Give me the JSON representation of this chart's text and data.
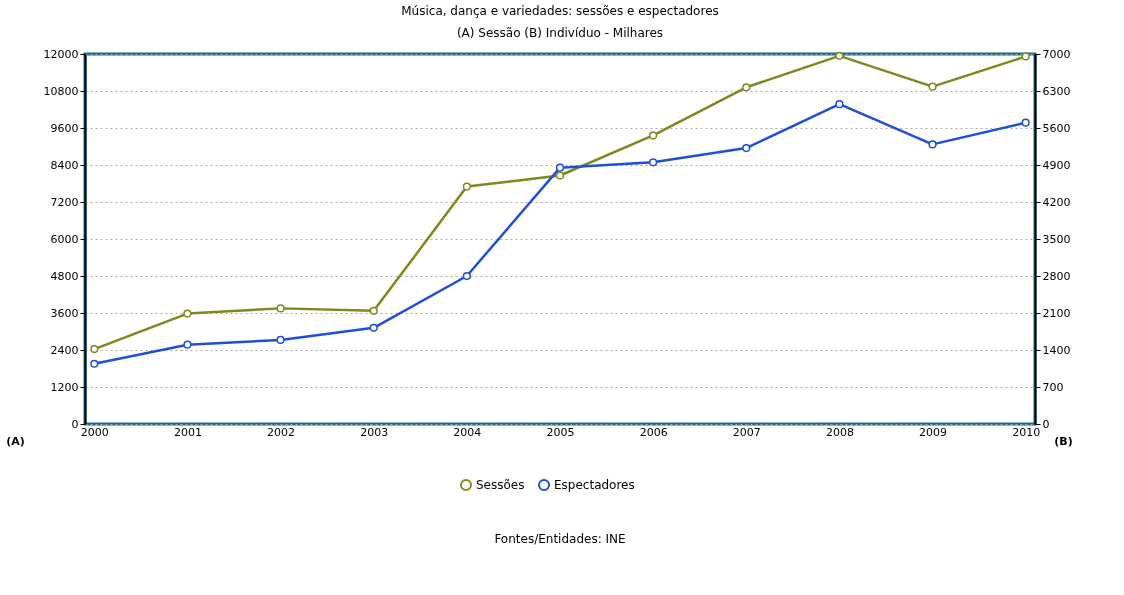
{
  "chart_data": {
    "type": "line",
    "title": "Música, dança e variedades: sessões e espectadores",
    "subtitle": "(A) Sessão      (B) Indivíduo - Milhares",
    "ylabel": "(A)",
    "y2label": "(B)",
    "categories": [
      "2000",
      "2001",
      "2002",
      "2003",
      "2004",
      "2005",
      "2006",
      "2007",
      "2008",
      "2009",
      "2010"
    ],
    "series": [
      {
        "name": "Sessões",
        "color": "#7a8a1e",
        "values": [
          2430,
          3580,
          3750,
          3670,
          7700,
          8060,
          9360,
          10920,
          11940,
          10940,
          11920
        ]
      },
      {
        "name": "Espectadores",
        "color": "#1f4fd8",
        "axis": "y2",
        "values": [
          1140,
          1500,
          1590,
          1820,
          2800,
          4850,
          4950,
          5220,
          6050,
          5290,
          5700
        ]
      }
    ],
    "ylim": [
      0,
      12000
    ],
    "yticks": [
      0,
      1200,
      2400,
      3600,
      4800,
      6000,
      7200,
      8400,
      9600,
      10800,
      12000
    ],
    "y2lim": [
      0,
      7000
    ],
    "y2ticks": [
      0,
      700,
      1400,
      2100,
      2800,
      3500,
      4200,
      4900,
      5600,
      6300,
      7000
    ],
    "grid": "y",
    "legend": "bottom",
    "marker": "circle",
    "line_style": "solid",
    "annotations": [
      "Fontes/Entidades: INE"
    ]
  }
}
